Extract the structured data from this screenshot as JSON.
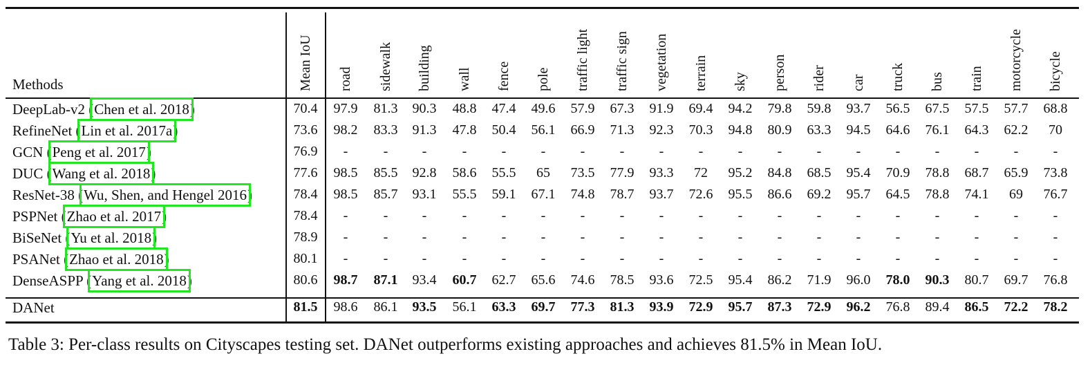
{
  "table": {
    "method_header": "Methods",
    "columns": [
      "Mean IoU",
      "road",
      "sidewalk",
      "building",
      "wall",
      "fence",
      "pole",
      "traffic light",
      "traffic sign",
      "vegetation",
      "terrain",
      "sky",
      "person",
      "rider",
      "car",
      "truck",
      "bus",
      "train",
      "motorcycle",
      "bicycle"
    ],
    "rows": [
      {
        "name": "DeepLab-v2",
        "cite": "Chen et al. 2018",
        "values": [
          "70.4",
          "97.9",
          "81.3",
          "90.3",
          "48.8",
          "47.4",
          "49.6",
          "57.9",
          "67.3",
          "91.9",
          "69.4",
          "94.2",
          "79.8",
          "59.8",
          "93.7",
          "56.5",
          "67.5",
          "57.5",
          "57.7",
          "68.8"
        ],
        "bold": []
      },
      {
        "name": "RefineNet",
        "cite": "Lin et al. 2017a",
        "values": [
          "73.6",
          "98.2",
          "83.3",
          "91.3",
          "47.8",
          "50.4",
          "56.1",
          "66.9",
          "71.3",
          "92.3",
          "70.3",
          "94.8",
          "80.9",
          "63.3",
          "94.5",
          "64.6",
          "76.1",
          "64.3",
          "62.2",
          "70"
        ],
        "bold": []
      },
      {
        "name": "GCN",
        "cite": "Peng et al. 2017",
        "values": [
          "76.9",
          "-",
          "-",
          "-",
          "-",
          "-",
          "-",
          "-",
          "-",
          "-",
          "-",
          "-",
          "-",
          "-",
          "-",
          "-",
          "-",
          "-",
          "-",
          "-"
        ],
        "bold": []
      },
      {
        "name": "DUC",
        "cite": "Wang et al. 2018",
        "values": [
          "77.6",
          "98.5",
          "85.5",
          "92.8",
          "58.6",
          "55.5",
          "65",
          "73.5",
          "77.9",
          "93.3",
          "72",
          "95.2",
          "84.8",
          "68.5",
          "95.4",
          "70.9",
          "78.8",
          "68.7",
          "65.9",
          "73.8"
        ],
        "bold": []
      },
      {
        "name": "ResNet-38",
        "cite": "Wu, Shen, and Hengel 2016",
        "values": [
          "78.4",
          "98.5",
          "85.7",
          "93.1",
          "55.5",
          "59.1",
          "67.1",
          "74.8",
          "78.7",
          "93.7",
          "72.6",
          "95.5",
          "86.6",
          "69.2",
          "95.7",
          "64.5",
          "78.8",
          "74.1",
          "69",
          "76.7"
        ],
        "bold": []
      },
      {
        "name": "PSPNet",
        "cite": "Zhao et al. 2017",
        "values": [
          "78.4",
          "-",
          "-",
          "-",
          "-",
          "-",
          "-",
          "-",
          "-",
          "-",
          "-",
          "-",
          "-",
          "-",
          "-",
          "-",
          "-",
          "-",
          "-",
          "-"
        ],
        "bold": []
      },
      {
        "name": "BiSeNet",
        "cite": "Yu et al. 2018",
        "values": [
          "78.9",
          "-",
          "-",
          "-",
          "-",
          "-",
          "-",
          "-",
          "-",
          "-",
          "-",
          "-",
          "-",
          "-",
          "-",
          "-",
          "-",
          "-",
          "-",
          "-"
        ],
        "bold": []
      },
      {
        "name": "PSANet",
        "cite": "Zhao et al. 2018",
        "values": [
          "80.1",
          "-",
          "-",
          "-",
          "-",
          "-",
          "-",
          "-",
          "-",
          "-",
          "-",
          "-",
          "-",
          "-",
          "-",
          "-",
          "-",
          "-",
          "-",
          "-"
        ],
        "bold": []
      },
      {
        "name": "DenseASPP",
        "cite": "Yang et al. 2018",
        "values": [
          "80.6",
          "98.7",
          "87.1",
          "93.4",
          "60.7",
          "62.7",
          "65.6",
          "74.6",
          "78.5",
          "93.6",
          "72.5",
          "95.4",
          "86.2",
          "71.9",
          "96.0",
          "78.0",
          "90.3",
          "80.7",
          "69.7",
          "76.8"
        ],
        "bold": [
          1,
          2,
          4,
          15,
          16
        ]
      },
      {
        "name": "DANet",
        "cite": "",
        "values": [
          "81.5",
          "98.6",
          "86.1",
          "93.5",
          "56.1",
          "63.3",
          "69.7",
          "77.3",
          "81.3",
          "93.9",
          "72.9",
          "95.7",
          "87.3",
          "72.9",
          "96.2",
          "76.8",
          "89.4",
          "86.5",
          "72.2",
          "78.2"
        ],
        "bold": [
          0,
          3,
          5,
          6,
          7,
          8,
          9,
          10,
          11,
          12,
          13,
          14,
          17,
          18,
          19
        ]
      }
    ]
  },
  "caption": "Table 3: Per-class results on Cityscapes testing set. DANet outperforms existing approaches and achieves 81.5% in Mean IoU.",
  "colors": {
    "citation_box": "#22e622"
  }
}
